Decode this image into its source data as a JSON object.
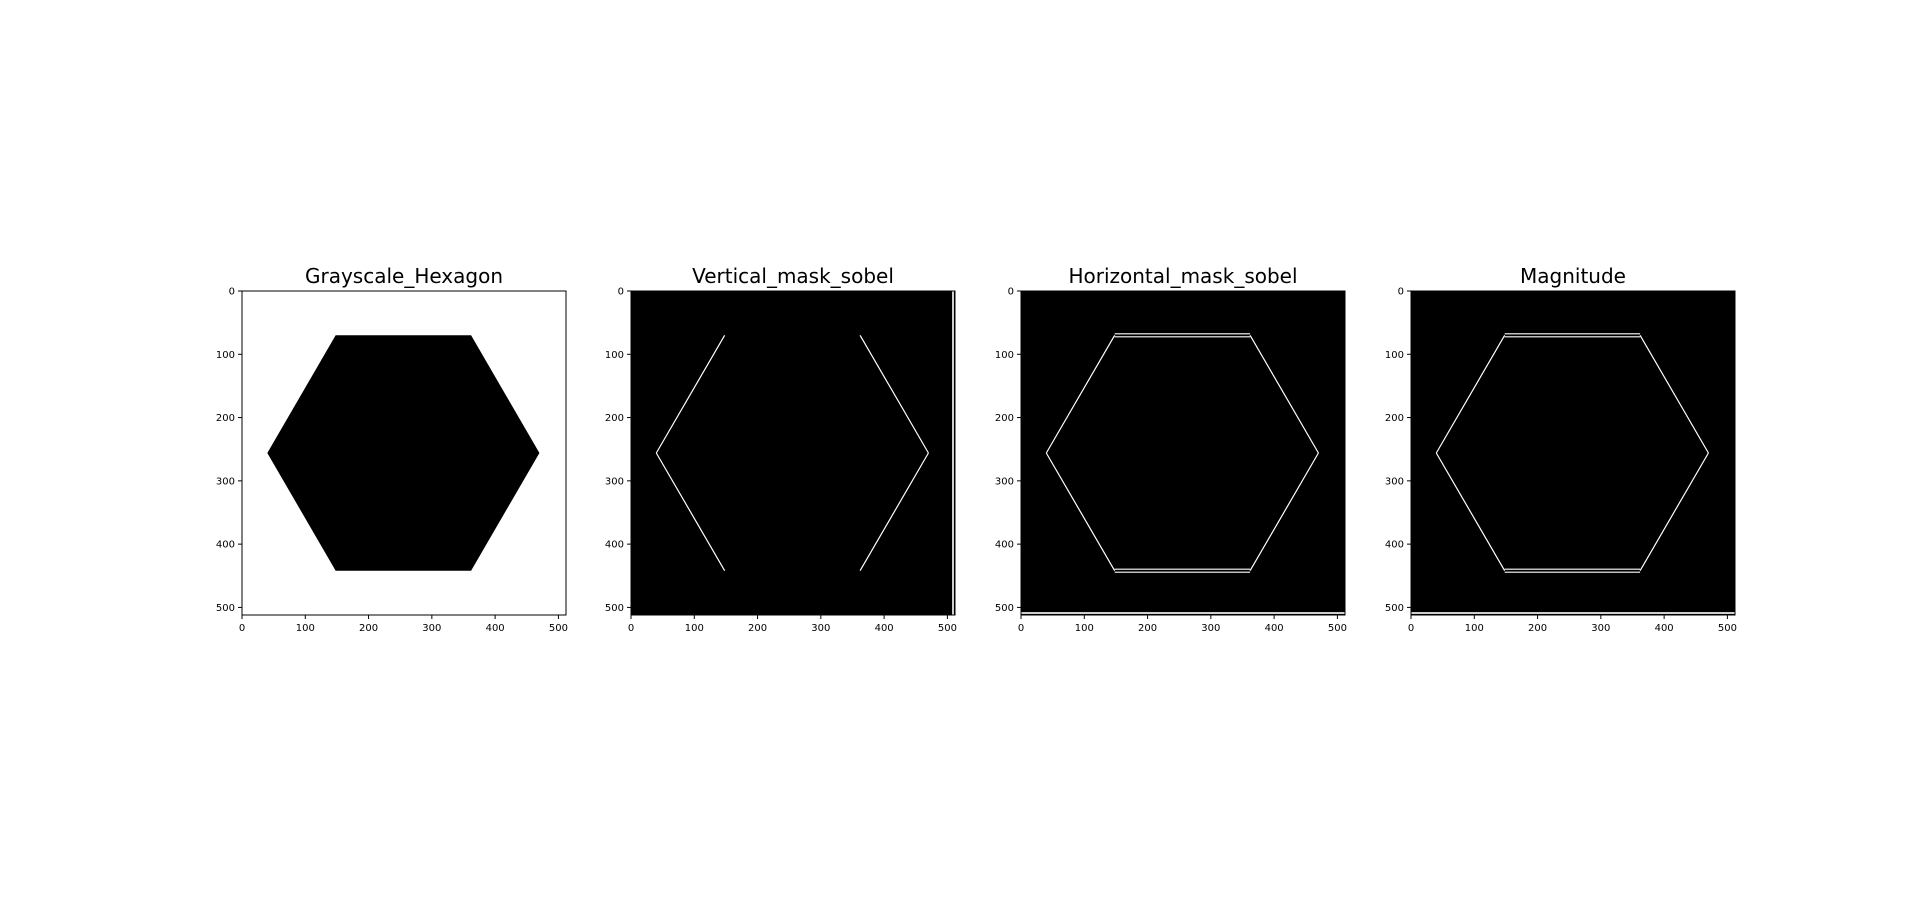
{
  "figure": {
    "panels": [
      {
        "title": "Grayscale_Hexagon",
        "background": "#ffffff",
        "hex_fill": "#000000",
        "edges": "none",
        "frame_color": "#000000"
      },
      {
        "title": "Vertical_mask_sobel",
        "background": "#000000",
        "hex_fill": "none",
        "edges": "slanted",
        "right_border_line": true,
        "frame_color": "#000000"
      },
      {
        "title": "Horizontal_mask_sobel",
        "background": "#000000",
        "hex_fill": "none",
        "edges": "all-double",
        "bottom_border_line": true,
        "frame_color": "#000000"
      },
      {
        "title": "Magnitude",
        "background": "#000000",
        "hex_fill": "none",
        "edges": "all",
        "bottom_border_line": true,
        "frame_color": "#000000"
      }
    ],
    "image_extent": [
      0,
      512
    ],
    "x_ticks": [
      0,
      100,
      200,
      300,
      400,
      500
    ],
    "y_ticks": [
      0,
      100,
      200,
      300,
      400,
      500
    ],
    "hexagon_vertices": [
      [
        148,
        70
      ],
      [
        362,
        70
      ],
      [
        470,
        256
      ],
      [
        362,
        442
      ],
      [
        148,
        442
      ],
      [
        40,
        256
      ]
    ],
    "edge_color": "#ffffff"
  }
}
